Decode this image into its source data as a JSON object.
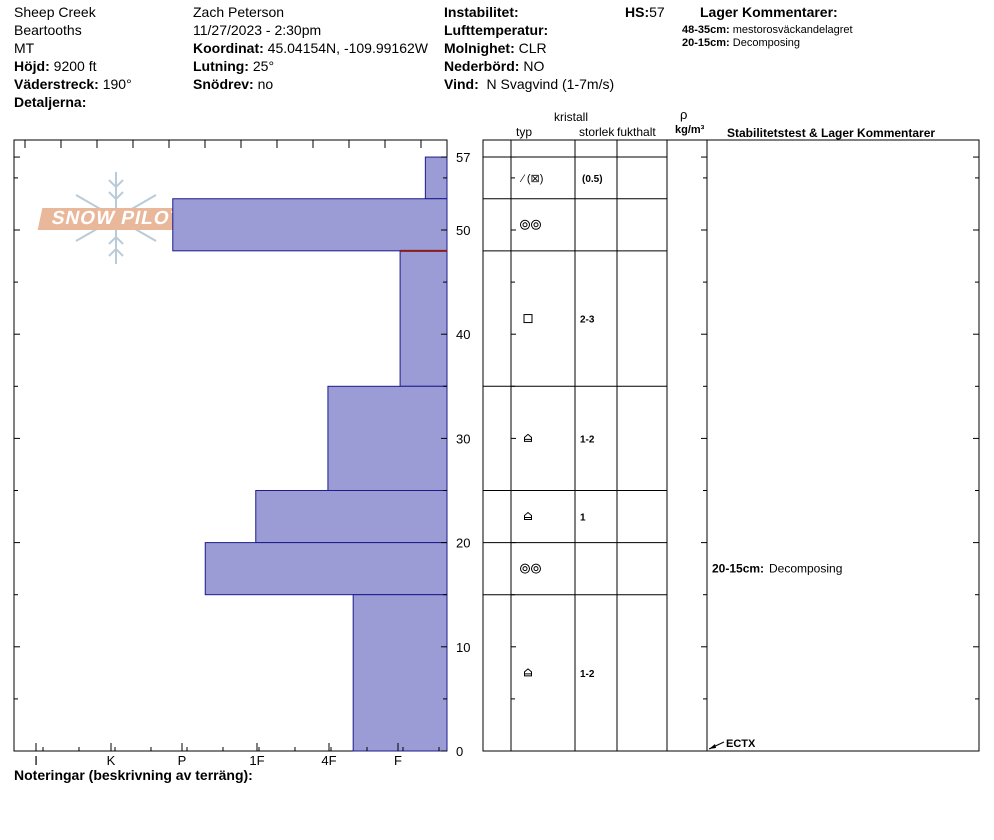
{
  "header": {
    "location": "Sheep Creek",
    "range": "Beartooths",
    "state": "MT",
    "elevation_label": "Höjd:",
    "elevation": "9200 ft",
    "aspect_label": "Väderstreck:",
    "aspect": "190°",
    "details_label": "Detaljerna:",
    "observer": "Zach Peterson",
    "datetime": "11/27/2023 - 2:30pm",
    "coord_label": "Koordinat:",
    "coord": "45.04154N, -109.99162W",
    "slope_label": "Lutning:",
    "slope": "25°",
    "drift_label": "Snödrev:",
    "drift": "no",
    "instability_label": "Instabilitet:",
    "hs_label": "HS:",
    "hs": "57",
    "airtemp_label": "Lufttemperatur:",
    "sky_label": "Molnighet:",
    "sky": "CLR",
    "precip_label": "Nederbörd:",
    "precip": "NO",
    "wind_label": "Vind:",
    "wind": "N Svagvind (1-7m/s)",
    "layer_comments_label": "Lager Kommentarer:",
    "layer_comments": [
      {
        "range": "48-35cm:",
        "text": "mestorosväckandelagret"
      },
      {
        "range": "20-15cm:",
        "text": "Decomposing"
      }
    ]
  },
  "columns": {
    "crystal": "kristall",
    "type": "typ",
    "size": "storlek",
    "moisture": "fukthalt",
    "rho": "ρ",
    "density_unit": "kg/m³",
    "stability": "Stabilitetstest & Lager Kommentarer"
  },
  "footer": {
    "notes_label": "Noteringar (beskrivning av terräng):"
  },
  "logo": {
    "text": "SNOW PILOT"
  },
  "stability_comments": [
    {
      "range": "20-15cm:",
      "text": "Decomposing"
    }
  ],
  "stability_test": {
    "label": "ECTX",
    "depth": 0
  },
  "chart_data": {
    "type": "bar",
    "orientation": "horizontal",
    "x_tick_labels": [
      "I",
      "K",
      "P",
      "1F",
      "4F",
      "F"
    ],
    "y_tick_labels": [
      "0",
      "10",
      "20",
      "30",
      "40",
      "50",
      "57"
    ],
    "ylim": [
      0,
      57
    ],
    "total_height": 57,
    "hardness_scale_max": 6,
    "layers": [
      {
        "top": 57,
        "bottom": 53,
        "hardness": 0.3,
        "crystal": "",
        "size": ""
      },
      {
        "top": 53,
        "bottom": 48,
        "hardness": 3.8,
        "crystal": "mf",
        "size": ""
      },
      {
        "top": 48,
        "bottom": 35,
        "hardness": 0.65,
        "crystal": "fc",
        "size": "2-3"
      },
      {
        "top": 35,
        "bottom": 25,
        "hardness": 1.65,
        "crystal": "dh",
        "size": "1-2"
      },
      {
        "top": 25,
        "bottom": 20,
        "hardness": 2.65,
        "crystal": "dh",
        "size": "1"
      },
      {
        "top": 20,
        "bottom": 15,
        "hardness": 3.35,
        "crystal": "mf",
        "size": ""
      },
      {
        "top": 15,
        "bottom": 0,
        "hardness": 1.3,
        "crystal": "dh",
        "size": "1-2"
      }
    ],
    "top_layer_crystal_label": "⁄ (⊠)",
    "top_layer_size": "(0.5)",
    "weak_layer_depth": 48,
    "colors": {
      "bar_fill": "#9b9bd6",
      "bar_stroke": "#1c1c8c",
      "weak_layer": "#8b1a1a"
    }
  }
}
